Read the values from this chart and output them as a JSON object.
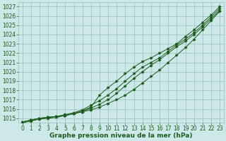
{
  "x": [
    0,
    1,
    2,
    3,
    4,
    5,
    6,
    7,
    8,
    9,
    10,
    11,
    12,
    13,
    14,
    15,
    16,
    17,
    18,
    19,
    20,
    21,
    22,
    23
  ],
  "series": [
    [
      1014.6,
      1014.8,
      1015.0,
      1015.1,
      1015.2,
      1015.3,
      1015.5,
      1015.7,
      1015.9,
      1016.2,
      1016.6,
      1017.0,
      1017.5,
      1018.1,
      1018.8,
      1019.5,
      1020.2,
      1021.0,
      1021.8,
      1022.6,
      1023.5,
      1024.5,
      1025.5,
      1026.5
    ],
    [
      1014.6,
      1014.8,
      1015.0,
      1015.1,
      1015.2,
      1015.3,
      1015.5,
      1015.8,
      1016.2,
      1017.5,
      1018.3,
      1019.0,
      1019.8,
      1020.5,
      1021.1,
      1021.5,
      1022.0,
      1022.5,
      1023.0,
      1023.8,
      1024.5,
      1025.3,
      1026.1,
      1027.0
    ],
    [
      1014.6,
      1014.8,
      1015.0,
      1015.1,
      1015.2,
      1015.4,
      1015.6,
      1015.9,
      1016.4,
      1016.9,
      1017.5,
      1018.2,
      1019.0,
      1019.8,
      1020.5,
      1021.0,
      1021.5,
      1022.2,
      1022.9,
      1023.5,
      1024.2,
      1025.0,
      1025.9,
      1026.8
    ],
    [
      1014.5,
      1014.7,
      1014.9,
      1015.0,
      1015.1,
      1015.3,
      1015.5,
      1015.7,
      1016.1,
      1016.5,
      1017.0,
      1017.7,
      1018.5,
      1019.3,
      1020.0,
      1020.7,
      1021.3,
      1022.0,
      1022.7,
      1023.3,
      1024.0,
      1024.8,
      1025.7,
      1026.6
    ]
  ],
  "marker_series": [
    1,
    2
  ],
  "ylim": [
    1014.5,
    1027.5
  ],
  "yticks": [
    1015,
    1016,
    1017,
    1018,
    1019,
    1020,
    1021,
    1022,
    1023,
    1024,
    1025,
    1026,
    1027
  ],
  "xlim": [
    -0.5,
    23.5
  ],
  "xticks": [
    0,
    1,
    2,
    3,
    4,
    5,
    6,
    7,
    8,
    9,
    10,
    11,
    12,
    13,
    14,
    15,
    16,
    17,
    18,
    19,
    20,
    21,
    22,
    23
  ],
  "xlabel": "Graphe pression niveau de la mer (hPa)",
  "bg_color": "#cde8e8",
  "line_color": "#1a5c1a",
  "grid_color": "#9bbcbc",
  "font_color": "#1a5c1a",
  "tick_label_size": 5.5,
  "xlabel_size": 6.5,
  "figsize": [
    3.2,
    2.0
  ],
  "dpi": 100
}
